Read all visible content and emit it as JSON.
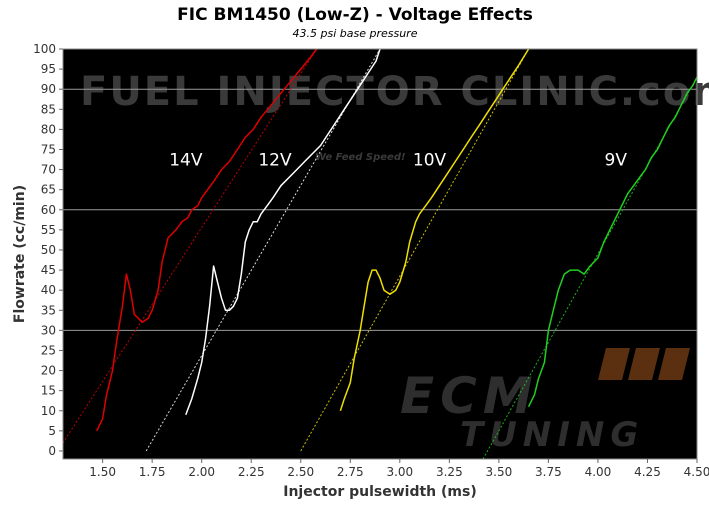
{
  "chart_data": {
    "type": "line",
    "title": "FIC BM1450 (Low-Z) - Voltage Effects",
    "subtitle": "43.5 psi base pressure",
    "xlabel": "Injector pulsewidth (ms)",
    "ylabel": "Flowrate (cc/min)",
    "xlim": [
      1.3,
      4.5
    ],
    "ylim": [
      -2,
      100
    ],
    "xticks": [
      "1.50",
      "1.75",
      "2.00",
      "2.25",
      "2.50",
      "2.75",
      "3.00",
      "3.25",
      "3.50",
      "3.75",
      "4.00",
      "4.25",
      "4.50"
    ],
    "yticks": [
      "0",
      "5",
      "10",
      "15",
      "20",
      "25",
      "30",
      "35",
      "40",
      "45",
      "50",
      "55",
      "60",
      "65",
      "70",
      "75",
      "80",
      "85",
      "90",
      "95",
      "100"
    ],
    "background": "#000000",
    "grid_lines_y": [
      30,
      60,
      90
    ],
    "watermarks": {
      "top": "FUEL INJECTOR CLINIC.com",
      "tagline": "We Feed Speed!",
      "bottom_line1": "ECM",
      "bottom_line2": "TUNING"
    },
    "series": [
      {
        "name": "14V",
        "color": "#e00000",
        "x": [
          1.47,
          1.5,
          1.52,
          1.55,
          1.57,
          1.6,
          1.62,
          1.64,
          1.66,
          1.68,
          1.7,
          1.73,
          1.75,
          1.78,
          1.8,
          1.83,
          1.85,
          1.87,
          1.9,
          1.93,
          1.95,
          1.98,
          2.0,
          2.03,
          2.06,
          2.1,
          2.14,
          2.18,
          2.22,
          2.26,
          2.3,
          2.35,
          2.4,
          2.45,
          2.5,
          2.55,
          2.58
        ],
        "y": [
          5,
          8,
          14,
          20,
          27,
          36,
          44,
          40,
          34,
          33,
          32,
          33,
          35,
          40,
          47,
          53,
          54,
          55,
          57,
          58,
          60,
          61,
          63,
          65,
          67,
          70,
          72,
          75,
          78,
          80,
          83,
          86,
          89,
          92,
          95,
          98,
          100
        ]
      },
      {
        "name": "12V",
        "color": "#ffffff",
        "x": [
          1.92,
          1.95,
          1.98,
          2.0,
          2.02,
          2.04,
          2.06,
          2.08,
          2.1,
          2.12,
          2.14,
          2.16,
          2.18,
          2.2,
          2.22,
          2.24,
          2.26,
          2.28,
          2.3,
          2.33,
          2.36,
          2.4,
          2.44,
          2.48,
          2.52,
          2.56,
          2.6,
          2.64,
          2.68,
          2.72,
          2.76,
          2.8,
          2.84,
          2.88,
          2.9
        ],
        "y": [
          9,
          13,
          18,
          22,
          28,
          36,
          46,
          42,
          38,
          35,
          35,
          36,
          38,
          44,
          52,
          55,
          57,
          57,
          59,
          61,
          63,
          66,
          68,
          70,
          72,
          74,
          76,
          79,
          82,
          85,
          88,
          91,
          94,
          97,
          100
        ]
      },
      {
        "name": "10V",
        "color": "#f0e000",
        "x": [
          2.7,
          2.72,
          2.75,
          2.77,
          2.8,
          2.82,
          2.84,
          2.86,
          2.88,
          2.9,
          2.92,
          2.95,
          2.98,
          3.0,
          3.03,
          3.05,
          3.08,
          3.1,
          3.13,
          3.16,
          3.2,
          3.24,
          3.28,
          3.32,
          3.36,
          3.4,
          3.44,
          3.48,
          3.52,
          3.56,
          3.6,
          3.65
        ],
        "y": [
          10,
          13,
          17,
          23,
          30,
          36,
          42,
          45,
          45,
          43,
          40,
          39,
          40,
          42,
          47,
          52,
          57,
          59,
          61,
          63,
          66,
          69,
          72,
          75,
          78,
          81,
          84,
          87,
          90,
          93,
          96,
          100
        ]
      },
      {
        "name": "9V",
        "color": "#20d020",
        "x": [
          3.65,
          3.68,
          3.7,
          3.73,
          3.75,
          3.78,
          3.8,
          3.83,
          3.86,
          3.9,
          3.93,
          3.96,
          4.0,
          4.03,
          4.06,
          4.09,
          4.12,
          4.15,
          4.18,
          4.21,
          4.24,
          4.27,
          4.3,
          4.33,
          4.36,
          4.39,
          4.42,
          4.45,
          4.48,
          4.5
        ],
        "y": [
          11,
          14,
          18,
          22,
          30,
          36,
          40,
          44,
          45,
          45,
          44,
          46,
          48,
          52,
          55,
          58,
          61,
          64,
          66,
          68,
          70,
          73,
          75,
          78,
          81,
          83,
          86,
          89,
          91,
          93
        ]
      }
    ],
    "trendlines": [
      {
        "series": "14V",
        "color": "#e00000",
        "x": [
          1.3,
          2.58
        ],
        "y": [
          2,
          100
        ]
      },
      {
        "series": "12V",
        "color": "#ffffff",
        "x": [
          1.72,
          2.9
        ],
        "y": [
          0,
          100
        ]
      },
      {
        "series": "10V",
        "color": "#f0e000",
        "x": [
          2.5,
          3.65
        ],
        "y": [
          0,
          100
        ]
      },
      {
        "series": "9V",
        "color": "#20d020",
        "x": [
          3.42,
          4.5
        ],
        "y": [
          -2,
          93
        ]
      }
    ],
    "series_labels": [
      {
        "text": "14V",
        "x": 1.92,
        "y": 71
      },
      {
        "text": "12V",
        "x": 2.37,
        "y": 71
      },
      {
        "text": "10V",
        "x": 3.15,
        "y": 71
      },
      {
        "text": "9V",
        "x": 4.09,
        "y": 71
      }
    ]
  }
}
